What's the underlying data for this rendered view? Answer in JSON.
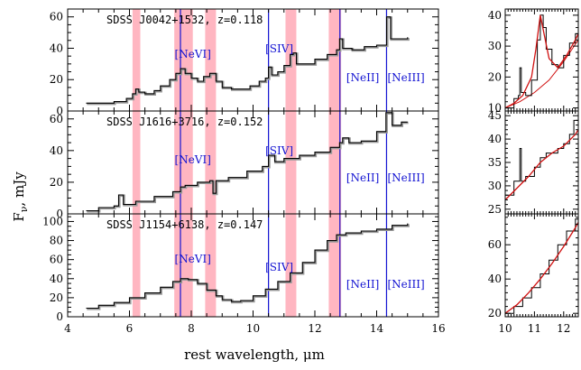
{
  "colors": {
    "spectrum": "#000000",
    "uncertainty": "#9a9a9a",
    "pah_band": "#ffb6c1",
    "line_marker": "#1414d2",
    "fit": "#d01010"
  },
  "chart_data": {
    "type": "line",
    "xlabel": "rest wavelength, μm",
    "ylabel": "Fν, mJy",
    "ylabel_main": "F",
    "ylabel_sub": "ν",
    "ylabel_unit": ", mJy",
    "xlim": [
      4,
      16
    ],
    "xticks": [
      4,
      6,
      8,
      10,
      12,
      14,
      16
    ],
    "pah_bands": [
      [
        6.1,
        6.35
      ],
      [
        7.45,
        8.05
      ],
      [
        8.45,
        8.8
      ],
      [
        11.05,
        11.4
      ],
      [
        12.45,
        12.85
      ]
    ],
    "lines": [
      {
        "name": "[NeVI]",
        "wavelength": 7.65,
        "label_x": 8.05
      },
      {
        "name": "[SIV]",
        "wavelength": 10.5,
        "label_x": 10.85
      },
      {
        "name": "[NeII]",
        "wavelength": 12.81,
        "label_x": 13.55
      },
      {
        "name": "[NeIII]",
        "wavelength": 14.32,
        "label_x": 14.95
      }
    ],
    "panels": [
      {
        "label": "SDSS J0042+1532, z=0.118",
        "ylim": [
          0,
          65
        ],
        "yticks": [
          0,
          20,
          40,
          60
        ],
        "series": [
          {
            "x": [
              4.6,
              5.0,
              5.5,
              5.9,
              6.1,
              6.2,
              6.3,
              6.5,
              6.8,
              7.0,
              7.3,
              7.5,
              7.65,
              7.8,
              8.0,
              8.2,
              8.4,
              8.6,
              8.8,
              9.0,
              9.3,
              9.6,
              9.9,
              10.2,
              10.4,
              10.5,
              10.6,
              10.8,
              11.0,
              11.2,
              11.3,
              11.4,
              11.6,
              12.0,
              12.4,
              12.7,
              12.8,
              12.9,
              13.2,
              13.6,
              14.0,
              14.2,
              14.32,
              14.45,
              14.7,
              15.0
            ],
            "y": [
              5,
              5,
              6,
              8,
              11,
              14,
              12,
              11,
              13,
              16,
              20,
              24,
              27,
              24,
              21,
              19,
              22,
              24,
              19,
              15,
              14,
              14,
              16,
              19,
              21,
              28,
              23,
              25,
              29,
              36,
              37,
              30,
              30,
              33,
              36,
              39,
              46,
              40,
              39,
              41,
              42,
              42,
              60,
              46,
              46,
              47
            ]
          }
        ]
      },
      {
        "label": "SDSS J1616+3716, z=0.152",
        "ylim": [
          0,
          65
        ],
        "yticks": [
          0,
          20,
          40,
          60
        ],
        "series": [
          {
            "x": [
              4.6,
              5.0,
              5.5,
              5.65,
              5.8,
              6.2,
              6.8,
              7.4,
              7.65,
              7.8,
              8.2,
              8.6,
              8.7,
              8.8,
              9.2,
              9.8,
              10.3,
              10.5,
              10.7,
              11.0,
              11.5,
              12.0,
              12.5,
              12.8,
              12.9,
              13.1,
              13.5,
              14.0,
              14.3,
              14.5,
              14.8,
              15.0
            ],
            "y": [
              2,
              4,
              5,
              12,
              6,
              8,
              11,
              14,
              17,
              18,
              20,
              21,
              13,
              21,
              23,
              27,
              30,
              37,
              33,
              35,
              37,
              39,
              42,
              45,
              48,
              45,
              46,
              52,
              64,
              56,
              58,
              58
            ]
          }
        ]
      },
      {
        "label": "SDSS J1154+6138, z=0.147",
        "ylim": [
          0,
          108
        ],
        "yticks": [
          0,
          20,
          40,
          60,
          80,
          100
        ],
        "series": [
          {
            "x": [
              4.6,
              5.0,
              5.5,
              6.0,
              6.5,
              7.0,
              7.4,
              7.65,
              7.9,
              8.2,
              8.5,
              8.8,
              9.0,
              9.3,
              9.6,
              10.0,
              10.4,
              10.8,
              11.2,
              11.6,
              12.0,
              12.4,
              12.7,
              13.0,
              13.5,
              14.0,
              14.5,
              15.0
            ],
            "y": [
              9,
              12,
              15,
              20,
              25,
              31,
              37,
              40,
              39,
              35,
              28,
              22,
              18,
              16,
              17,
              22,
              29,
              37,
              46,
              57,
              70,
              80,
              86,
              88,
              90,
              92,
              96,
              98
            ]
          }
        ]
      }
    ],
    "insets": [
      {
        "xlim": [
          10,
          12.5
        ],
        "xticks": [
          10,
          11,
          12
        ],
        "ylim": [
          9,
          42
        ],
        "yticks": [
          10,
          20,
          30,
          40
        ],
        "data": {
          "x": [
            10.0,
            10.3,
            10.45,
            10.5,
            10.55,
            10.7,
            10.9,
            11.1,
            11.2,
            11.3,
            11.4,
            11.6,
            11.8,
            12.0,
            12.2,
            12.4,
            12.5
          ],
          "y": [
            10,
            13,
            14,
            23,
            15,
            14,
            19,
            32,
            40,
            36,
            29,
            24,
            23,
            27,
            31,
            34,
            35
          ]
        },
        "fit": {
          "x": [
            10.0,
            10.3,
            10.6,
            10.9,
            11.05,
            11.2,
            11.35,
            11.5,
            11.8,
            12.1,
            12.4,
            12.5
          ],
          "y": [
            10,
            11.5,
            14,
            20,
            29,
            40,
            33,
            26,
            23,
            27,
            32,
            34
          ]
        },
        "baseline": {
          "x": [
            10.0,
            10.5,
            11.0,
            11.5,
            12.0,
            12.5
          ],
          "y": [
            10,
            12,
            15,
            19,
            25,
            32
          ]
        }
      },
      {
        "xlim": [
          10,
          12.5
        ],
        "xticks": [
          10,
          11,
          12
        ],
        "ylim": [
          24,
          46
        ],
        "yticks": [
          25,
          30,
          35,
          40,
          45
        ],
        "data": {
          "x": [
            10.0,
            10.3,
            10.45,
            10.5,
            10.55,
            10.7,
            11.0,
            11.2,
            11.4,
            11.6,
            11.8,
            12.0,
            12.2,
            12.35,
            12.5
          ],
          "y": [
            28,
            31,
            31,
            38,
            31,
            32,
            34,
            36,
            37,
            37,
            38,
            39,
            41,
            44,
            45
          ]
        },
        "fit": {
          "x": [
            10.0,
            10.4,
            10.8,
            11.2,
            11.6,
            12.0,
            12.4,
            12.5
          ],
          "y": [
            27,
            29.5,
            32,
            35,
            37,
            38.5,
            41,
            42
          ]
        },
        "baseline": null
      },
      {
        "xlim": [
          10,
          12.5
        ],
        "xticks": [
          10,
          11,
          12
        ],
        "ylim": [
          18,
          78
        ],
        "yticks": [
          20,
          40,
          60
        ],
        "data": {
          "x": [
            10.0,
            10.3,
            10.6,
            10.9,
            11.2,
            11.5,
            11.8,
            12.1,
            12.4,
            12.5
          ],
          "y": [
            20,
            24,
            29,
            35,
            43,
            51,
            60,
            68,
            75,
            76
          ]
        },
        "fit": {
          "x": [
            10.0,
            10.4,
            10.8,
            11.2,
            11.6,
            12.0,
            12.4,
            12.5
          ],
          "y": [
            20,
            25,
            32,
            40,
            49,
            59,
            70,
            73
          ]
        },
        "baseline": null
      }
    ]
  }
}
